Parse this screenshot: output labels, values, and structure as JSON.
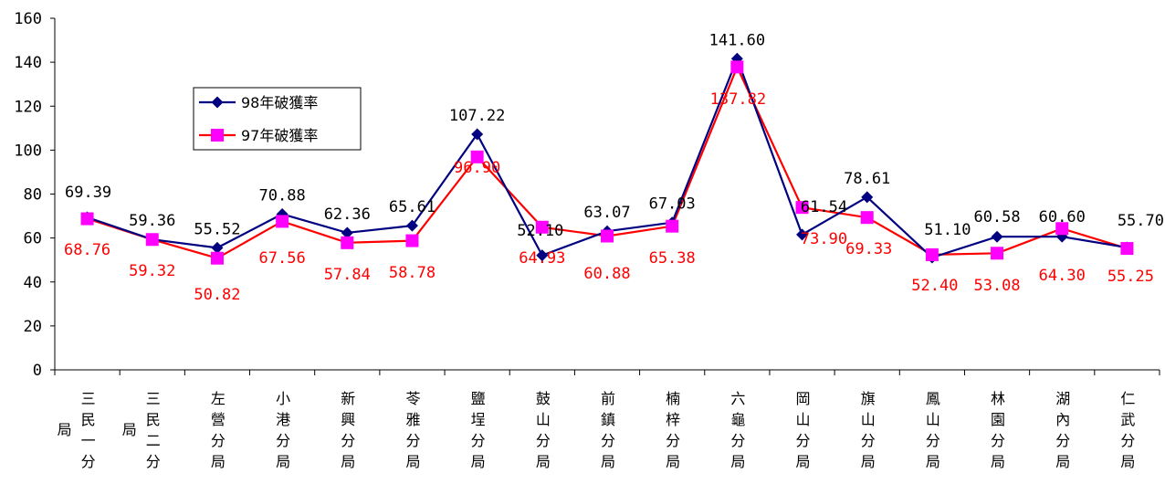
{
  "chart_data": {
    "type": "line",
    "categories": [
      "三民一分局",
      "三民二分局",
      "左營分局",
      "小港分局",
      "新興分局",
      "苓雅分局",
      "鹽埕分局",
      "鼓山分局",
      "前鎮分局",
      "楠梓分局",
      "六龜分局",
      "岡山分局",
      "旗山分局",
      "鳳山分局",
      "林園分局",
      "湖內分局",
      "仁武分局"
    ],
    "category_columns": [
      {
        "main": "三民一",
        "side": "局",
        "bottom": "分"
      },
      {
        "main": "三民二",
        "side": "局",
        "bottom": "分"
      },
      {
        "main": "左營分",
        "side": "",
        "bottom": "局"
      },
      {
        "main": "小港分",
        "side": "",
        "bottom": "局"
      },
      {
        "main": "新興分",
        "side": "",
        "bottom": "局"
      },
      {
        "main": "苓雅分",
        "side": "",
        "bottom": "局"
      },
      {
        "main": "鹽埕分",
        "side": "",
        "bottom": "局"
      },
      {
        "main": "鼓山分",
        "side": "",
        "bottom": "局"
      },
      {
        "main": "前鎮分",
        "side": "",
        "bottom": "局"
      },
      {
        "main": "楠梓分",
        "side": "",
        "bottom": "局"
      },
      {
        "main": "六龜分",
        "side": "",
        "bottom": "局"
      },
      {
        "main": "岡山分",
        "side": "",
        "bottom": "局"
      },
      {
        "main": "旗山分",
        "side": "",
        "bottom": "局"
      },
      {
        "main": "鳳山分",
        "side": "",
        "bottom": "局"
      },
      {
        "main": "林園分",
        "side": "",
        "bottom": "局"
      },
      {
        "main": "湖內分",
        "side": "",
        "bottom": "局"
      },
      {
        "main": "仁武分",
        "side": "",
        "bottom": "局"
      }
    ],
    "series": [
      {
        "name": "98年破獲率",
        "color": "#000080",
        "marker": "diamond",
        "values": [
          69.39,
          59.36,
          55.52,
          70.88,
          62.36,
          65.61,
          107.22,
          52.1,
          63.07,
          67.03,
          141.6,
          61.54,
          78.61,
          51.1,
          60.58,
          60.6,
          55.7
        ],
        "labels": [
          "69.39",
          "59.36",
          "55.52",
          "70.88",
          "62.36",
          "65.61",
          "107.22",
          "52.10",
          "63.07",
          "67.03",
          "141.60",
          "61.54",
          "78.61",
          "51.10",
          "60.58",
          "60.60",
          "55.70"
        ]
      },
      {
        "name": "97年破獲率",
        "color": "#ff0000",
        "marker_color": "#ff00ff",
        "marker": "square",
        "values": [
          68.76,
          59.32,
          50.82,
          67.56,
          57.84,
          58.78,
          96.9,
          64.93,
          60.88,
          65.38,
          137.82,
          73.9,
          69.33,
          52.4,
          53.08,
          64.3,
          55.25
        ],
        "labels": [
          "68.76",
          "59.32",
          "50.82",
          "67.56",
          "57.84",
          "58.78",
          "96.90",
          "64.93",
          "60.88",
          "65.38",
          "137.82",
          "73.90",
          "69.33",
          "52.40",
          "53.08",
          "64.30",
          "55.25"
        ]
      }
    ],
    "ylim": [
      0,
      160
    ],
    "yticks": [
      "0",
      "20",
      "40",
      "60",
      "80",
      "100",
      "120",
      "140",
      "160"
    ],
    "xlabel": "",
    "ylabel": "",
    "grid": false,
    "legend_placement": "upper-left inside plot"
  }
}
